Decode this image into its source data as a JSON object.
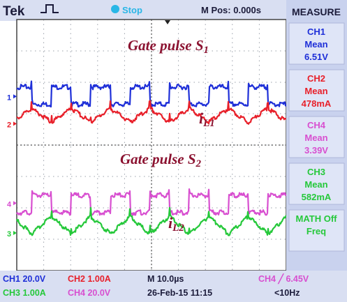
{
  "header": {
    "brand": "Tek",
    "state": "Stop",
    "mpos": "M Pos: 0.000s"
  },
  "measure_panel": {
    "title": "MEASURE",
    "items": [
      {
        "ch": "CH1",
        "label": "Mean",
        "value": "6.51V",
        "color": "#1e2fd8"
      },
      {
        "ch": "CH2",
        "label": "Mean",
        "value": "478mA",
        "color": "#e8202a"
      },
      {
        "ch": "CH4",
        "label": "Mean",
        "value": "3.39V",
        "color": "#d84fd0"
      },
      {
        "ch": "CH3",
        "label": "Mean",
        "value": "582mA",
        "color": "#25c83a"
      },
      {
        "ch": "MATH Off",
        "label": "Freq",
        "value": "",
        "color": "#25c83a"
      }
    ]
  },
  "status": {
    "row1": {
      "ch1": "CH1  20.0V",
      "ch2": "CH2  1.00A",
      "timebase": "M 10.0µs",
      "trigger": "CH4 ╱ 6.45V"
    },
    "row2": {
      "ch3": "CH3  1.00A",
      "ch4": "CH4  20.0V",
      "date": "26-Feb-15 11:15",
      "freq": "<10Hz"
    }
  },
  "chart_data": {
    "type": "line",
    "title": "",
    "xlabel": "",
    "ylabel": "",
    "time_per_div_us": 10,
    "divisions": {
      "x": 10,
      "y": 8
    },
    "period_us": 14.6,
    "duty": 0.5,
    "annotations": {
      "gate1_prefix": "Gate pulse S",
      "gate1_sub": "1",
      "il1_main": "i",
      "il1_sub": "L1",
      "gate2_prefix": "Gate pulse S",
      "gate2_sub": "2",
      "il2_main": "i",
      "il2_sub": "L2"
    },
    "channel_markers": [
      "1",
      "2",
      "4",
      "3"
    ],
    "series": [
      {
        "name": "CH1",
        "kind": "square",
        "phase": 0.12,
        "high_div": 1.85,
        "low_div": 1.3,
        "color": "#1e2fd8"
      },
      {
        "name": "CH2",
        "kind": "triangle",
        "phase": 0.12,
        "mean_div": 0.95,
        "amp_div": 0.22,
        "color": "#e8202a"
      },
      {
        "name": "CH4",
        "kind": "square",
        "phase": 0.62,
        "high_div": -1.6,
        "low_div": -2.15,
        "color": "#d84fd0"
      },
      {
        "name": "CH3",
        "kind": "triangle",
        "phase": 0.62,
        "mean_div": -2.55,
        "amp_div": 0.28,
        "color": "#25c83a"
      }
    ]
  }
}
